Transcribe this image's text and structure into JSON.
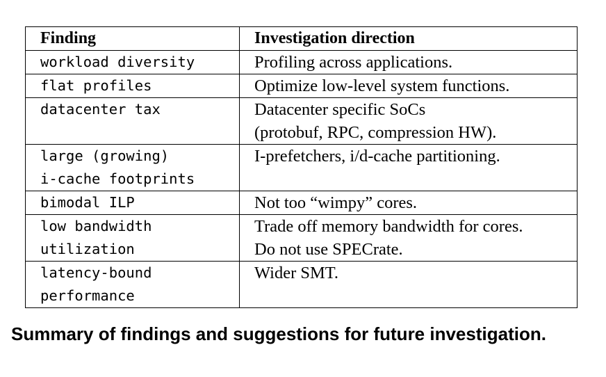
{
  "table": {
    "headers": {
      "finding": "Finding",
      "direction": "Investigation direction"
    },
    "rows": [
      {
        "finding": [
          "workload diversity"
        ],
        "direction": [
          "Profiling across applications."
        ]
      },
      {
        "finding": [
          "flat profiles"
        ],
        "direction": [
          "Optimize low-level system functions."
        ]
      },
      {
        "finding": [
          "datacenter tax"
        ],
        "direction": [
          "Datacenter specific SoCs",
          "(protobuf, RPC, compression HW)."
        ]
      },
      {
        "finding": [
          "large (growing)",
          "i-cache footprints"
        ],
        "direction": [
          "I-prefetchers, i/d-cache partitioning."
        ]
      },
      {
        "finding": [
          "bimodal ILP"
        ],
        "direction": [
          "Not too “wimpy” cores."
        ]
      },
      {
        "finding": [
          "low bandwidth",
          "utilization"
        ],
        "direction": [
          "Trade off memory bandwidth for cores.",
          "Do not use SPECrate."
        ]
      },
      {
        "finding": [
          "latency-bound",
          "performance"
        ],
        "direction": [
          "Wider SMT."
        ]
      }
    ]
  },
  "caption": "Summary of findings and suggestions for future investigation."
}
